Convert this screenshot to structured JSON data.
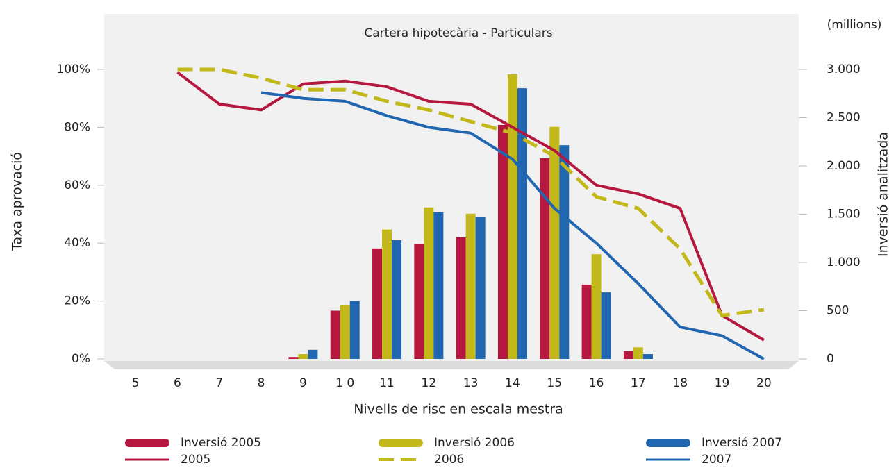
{
  "chart_data": {
    "type": "bar_line",
    "title": "Cartera hipotecària - Particulars",
    "xlabel": "Nivells de risc en escala mestra",
    "ylabel": "Taxa aprovació",
    "y2label": "Inversió analitzada",
    "y2unit": "(millions)",
    "categories": [
      "5",
      "6",
      "7",
      "8",
      "9",
      "1 0",
      "11",
      "12",
      "13",
      "14",
      "15",
      "16",
      "17",
      "18",
      "19",
      "20"
    ],
    "ylim": [
      0,
      100
    ],
    "yticks": [
      {
        "value": 0,
        "label": "0%"
      },
      {
        "value": 20,
        "label": "20%"
      },
      {
        "value": 40,
        "label": "40%"
      },
      {
        "value": 60,
        "label": "60%"
      },
      {
        "value": 80,
        "label": "80%"
      },
      {
        "value": 100,
        "label": "100%"
      }
    ],
    "y2lim": [
      0,
      3000
    ],
    "y2ticks": [
      0,
      500,
      {
        "value": 1000,
        "label": "1.000"
      },
      {
        "value": 1500,
        "label": "1.500"
      },
      {
        "value": 2000,
        "label": "2.000"
      },
      {
        "value": 2500,
        "label": "2.500"
      },
      {
        "value": 3000,
        "label": "3.000"
      }
    ],
    "series": [
      {
        "name": "Inversió 2005",
        "type": "bar",
        "axis": "y2",
        "color": "#b5173f",
        "values": [
          null,
          null,
          null,
          null,
          20,
          500,
          1145,
          1190,
          1260,
          2425,
          2080,
          770,
          80,
          null,
          null,
          null
        ]
      },
      {
        "name": "2005",
        "type": "line",
        "line_style": "solid",
        "color": "#b5173f",
        "values": [
          null,
          99,
          88,
          86,
          95,
          96,
          94,
          89,
          88,
          80,
          72,
          60,
          57,
          52,
          15,
          6.5
        ]
      },
      {
        "name": "Inversió 2006",
        "type": "bar",
        "axis": "y2",
        "color": "#c2b81a",
        "values": [
          null,
          null,
          null,
          null,
          50,
          555,
          1340,
          1570,
          1505,
          2950,
          2405,
          1085,
          120,
          null,
          null,
          null
        ]
      },
      {
        "name": "2006",
        "type": "line",
        "line_style": "dashed",
        "color": "#c2b81a",
        "values": [
          null,
          100,
          100,
          97,
          93,
          93,
          89,
          86,
          82,
          78,
          70,
          56,
          52,
          38,
          15,
          17
        ]
      },
      {
        "name": "Inversió 2007",
        "type": "bar",
        "axis": "y2",
        "color": "#2066b0",
        "values": [
          null,
          null,
          null,
          null,
          95,
          600,
          1230,
          1520,
          1475,
          2805,
          2215,
          690,
          50,
          null,
          null,
          null
        ]
      },
      {
        "name": "2007",
        "type": "line",
        "line_style": "solid",
        "color": "#2066b0",
        "values": [
          null,
          null,
          null,
          92,
          90,
          89,
          84,
          80,
          78,
          69,
          52,
          40,
          26,
          11,
          8,
          0
        ]
      }
    ]
  }
}
